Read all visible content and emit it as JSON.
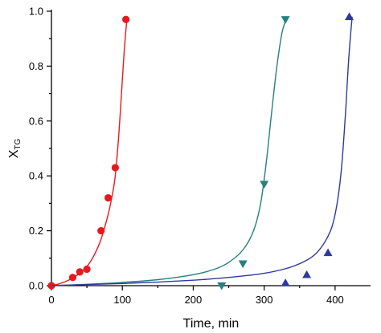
{
  "chart_data": {
    "type": "scatter",
    "xlabel": "Time, min",
    "ylabel_main": "X",
    "ylabel_sub": "TG",
    "xlim": [
      0,
      450
    ],
    "ylim": [
      0,
      1.0
    ],
    "x_ticks": [
      0,
      100,
      200,
      300,
      400
    ],
    "x_tick_labels": [
      "0",
      "100",
      "200",
      "300",
      "400"
    ],
    "y_ticks": [
      0.0,
      0.2,
      0.4,
      0.6,
      0.8,
      1.0
    ],
    "y_tick_labels": [
      "0.0",
      "0.2",
      "0.4",
      "0.6",
      "0.8",
      "1.0"
    ],
    "grid": false,
    "series": [
      {
        "marker": "circle",
        "color": "#e8191e",
        "points": [
          {
            "x": 0,
            "y": 0.0
          },
          {
            "x": 30,
            "y": 0.03
          },
          {
            "x": 40,
            "y": 0.05
          },
          {
            "x": 50,
            "y": 0.06
          },
          {
            "x": 70,
            "y": 0.2
          },
          {
            "x": 80,
            "y": 0.32
          },
          {
            "x": 90,
            "y": 0.43
          },
          {
            "x": 105,
            "y": 0.97
          }
        ],
        "curve": [
          [
            0,
            0.0
          ],
          [
            10,
            0.006
          ],
          [
            20,
            0.015
          ],
          [
            30,
            0.028
          ],
          [
            40,
            0.045
          ],
          [
            50,
            0.07
          ],
          [
            60,
            0.11
          ],
          [
            70,
            0.17
          ],
          [
            80,
            0.26
          ],
          [
            85,
            0.32
          ],
          [
            90,
            0.4
          ],
          [
            95,
            0.55
          ],
          [
            100,
            0.75
          ],
          [
            103,
            0.87
          ],
          [
            106,
            0.96
          ]
        ]
      },
      {
        "marker": "triangle-down",
        "color": "#268080",
        "points": [
          {
            "x": 240,
            "y": 0.0
          },
          {
            "x": 270,
            "y": 0.08
          },
          {
            "x": 300,
            "y": 0.37
          },
          {
            "x": 330,
            "y": 0.97
          }
        ],
        "curve": [
          [
            0,
            0.0
          ],
          [
            50,
            0.005
          ],
          [
            100,
            0.012
          ],
          [
            150,
            0.022
          ],
          [
            200,
            0.04
          ],
          [
            230,
            0.06
          ],
          [
            250,
            0.085
          ],
          [
            270,
            0.13
          ],
          [
            285,
            0.2
          ],
          [
            295,
            0.3
          ],
          [
            303,
            0.45
          ],
          [
            310,
            0.62
          ],
          [
            318,
            0.8
          ],
          [
            325,
            0.92
          ],
          [
            332,
            0.98
          ]
        ]
      },
      {
        "marker": "triangle-up",
        "color": "#2e3a9a",
        "points": [
          {
            "x": 330,
            "y": 0.01
          },
          {
            "x": 360,
            "y": 0.04
          },
          {
            "x": 390,
            "y": 0.12
          },
          {
            "x": 420,
            "y": 0.98
          }
        ],
        "curve": [
          [
            0,
            0.0
          ],
          [
            50,
            0.004
          ],
          [
            100,
            0.008
          ],
          [
            150,
            0.013
          ],
          [
            200,
            0.02
          ],
          [
            250,
            0.03
          ],
          [
            300,
            0.045
          ],
          [
            340,
            0.07
          ],
          [
            370,
            0.11
          ],
          [
            390,
            0.18
          ],
          [
            400,
            0.26
          ],
          [
            408,
            0.4
          ],
          [
            414,
            0.6
          ],
          [
            419,
            0.82
          ],
          [
            424,
            0.98
          ]
        ]
      }
    ]
  }
}
